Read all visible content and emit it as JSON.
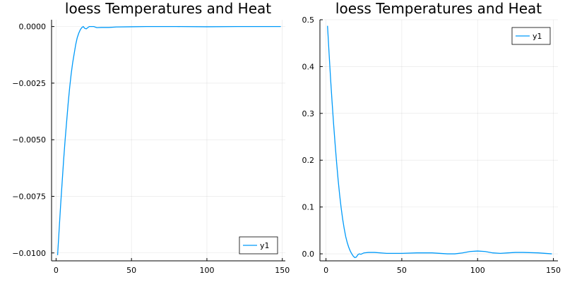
{
  "chart_data": [
    {
      "type": "line",
      "title": "loess Temperatures and Heat",
      "xlabel": "",
      "ylabel": "",
      "xlim": [
        -3,
        152
      ],
      "ylim": [
        -0.01035,
        0.0003
      ],
      "xticks": [
        0,
        50,
        100,
        150
      ],
      "xtick_labels": [
        "0",
        "50",
        "100",
        "150"
      ],
      "yticks": [
        -0.01,
        -0.0075,
        -0.005,
        -0.0025,
        0.0
      ],
      "ytick_labels": [
        "−0.0100",
        "−0.0075",
        "−0.0050",
        "−0.0025",
        "0.0000"
      ],
      "grid": true,
      "legend_position": "bottom-right",
      "color": "#009af9",
      "series": [
        {
          "name": "y1",
          "x": [
            1,
            2,
            3,
            4,
            5,
            6,
            7,
            8,
            9,
            10,
            11,
            12,
            13,
            14,
            15,
            16,
            17,
            18,
            19,
            20,
            21,
            22,
            23,
            25,
            27,
            30,
            35,
            40,
            50,
            60,
            80,
            100,
            120,
            140,
            149
          ],
          "y": [
            -0.0101,
            -0.009,
            -0.0079,
            -0.0069,
            -0.0059,
            -0.005,
            -0.0042,
            -0.0034,
            -0.0027,
            -0.0021,
            -0.0016,
            -0.0012,
            -0.0008,
            -0.0005,
            -0.0003,
            -0.00015,
            -5e-05,
            0.0,
            -8e-05,
            -0.0001,
            -5e-05,
            0.0,
            0.0,
            0.0,
            -5e-05,
            -4e-05,
            -4e-05,
            -2e-05,
            -1e-05,
            0.0,
            0.0,
            -1e-05,
            0.0,
            0.0,
            0.0
          ]
        }
      ]
    },
    {
      "type": "line",
      "title": "loess Temperatures and Heat",
      "xlabel": "",
      "ylabel": "",
      "xlim": [
        -4,
        153
      ],
      "ylim": [
        -0.015,
        0.5
      ],
      "xticks": [
        0,
        50,
        100,
        150
      ],
      "xtick_labels": [
        "0",
        "50",
        "100",
        "150"
      ],
      "yticks": [
        0.0,
        0.1,
        0.2,
        0.3,
        0.4,
        0.5
      ],
      "ytick_labels": [
        "0.0",
        "0.1",
        "0.2",
        "0.3",
        "0.4",
        "0.5"
      ],
      "grid": true,
      "legend_position": "top-right",
      "color": "#009af9",
      "series": [
        {
          "name": "y1",
          "x": [
            1,
            2,
            3,
            4,
            5,
            6,
            7,
            8,
            9,
            10,
            11,
            12,
            13,
            14,
            15,
            16,
            17,
            18,
            19,
            20,
            21,
            22,
            23,
            25,
            28,
            32,
            40,
            50,
            60,
            70,
            80,
            85,
            90,
            95,
            100,
            105,
            110,
            115,
            120,
            125,
            130,
            140,
            149
          ],
          "y": [
            0.487,
            0.43,
            0.375,
            0.325,
            0.278,
            0.235,
            0.195,
            0.158,
            0.126,
            0.098,
            0.074,
            0.054,
            0.037,
            0.024,
            0.014,
            0.006,
            0.0,
            -0.005,
            -0.008,
            -0.007,
            -0.002,
            0.0,
            -0.001,
            0.002,
            0.003,
            0.003,
            0.001,
            0.001,
            0.002,
            0.002,
            0.0,
            0.0,
            0.002,
            0.005,
            0.006,
            0.005,
            0.002,
            0.001,
            0.002,
            0.003,
            0.003,
            0.002,
            0.0
          ]
        }
      ]
    }
  ]
}
